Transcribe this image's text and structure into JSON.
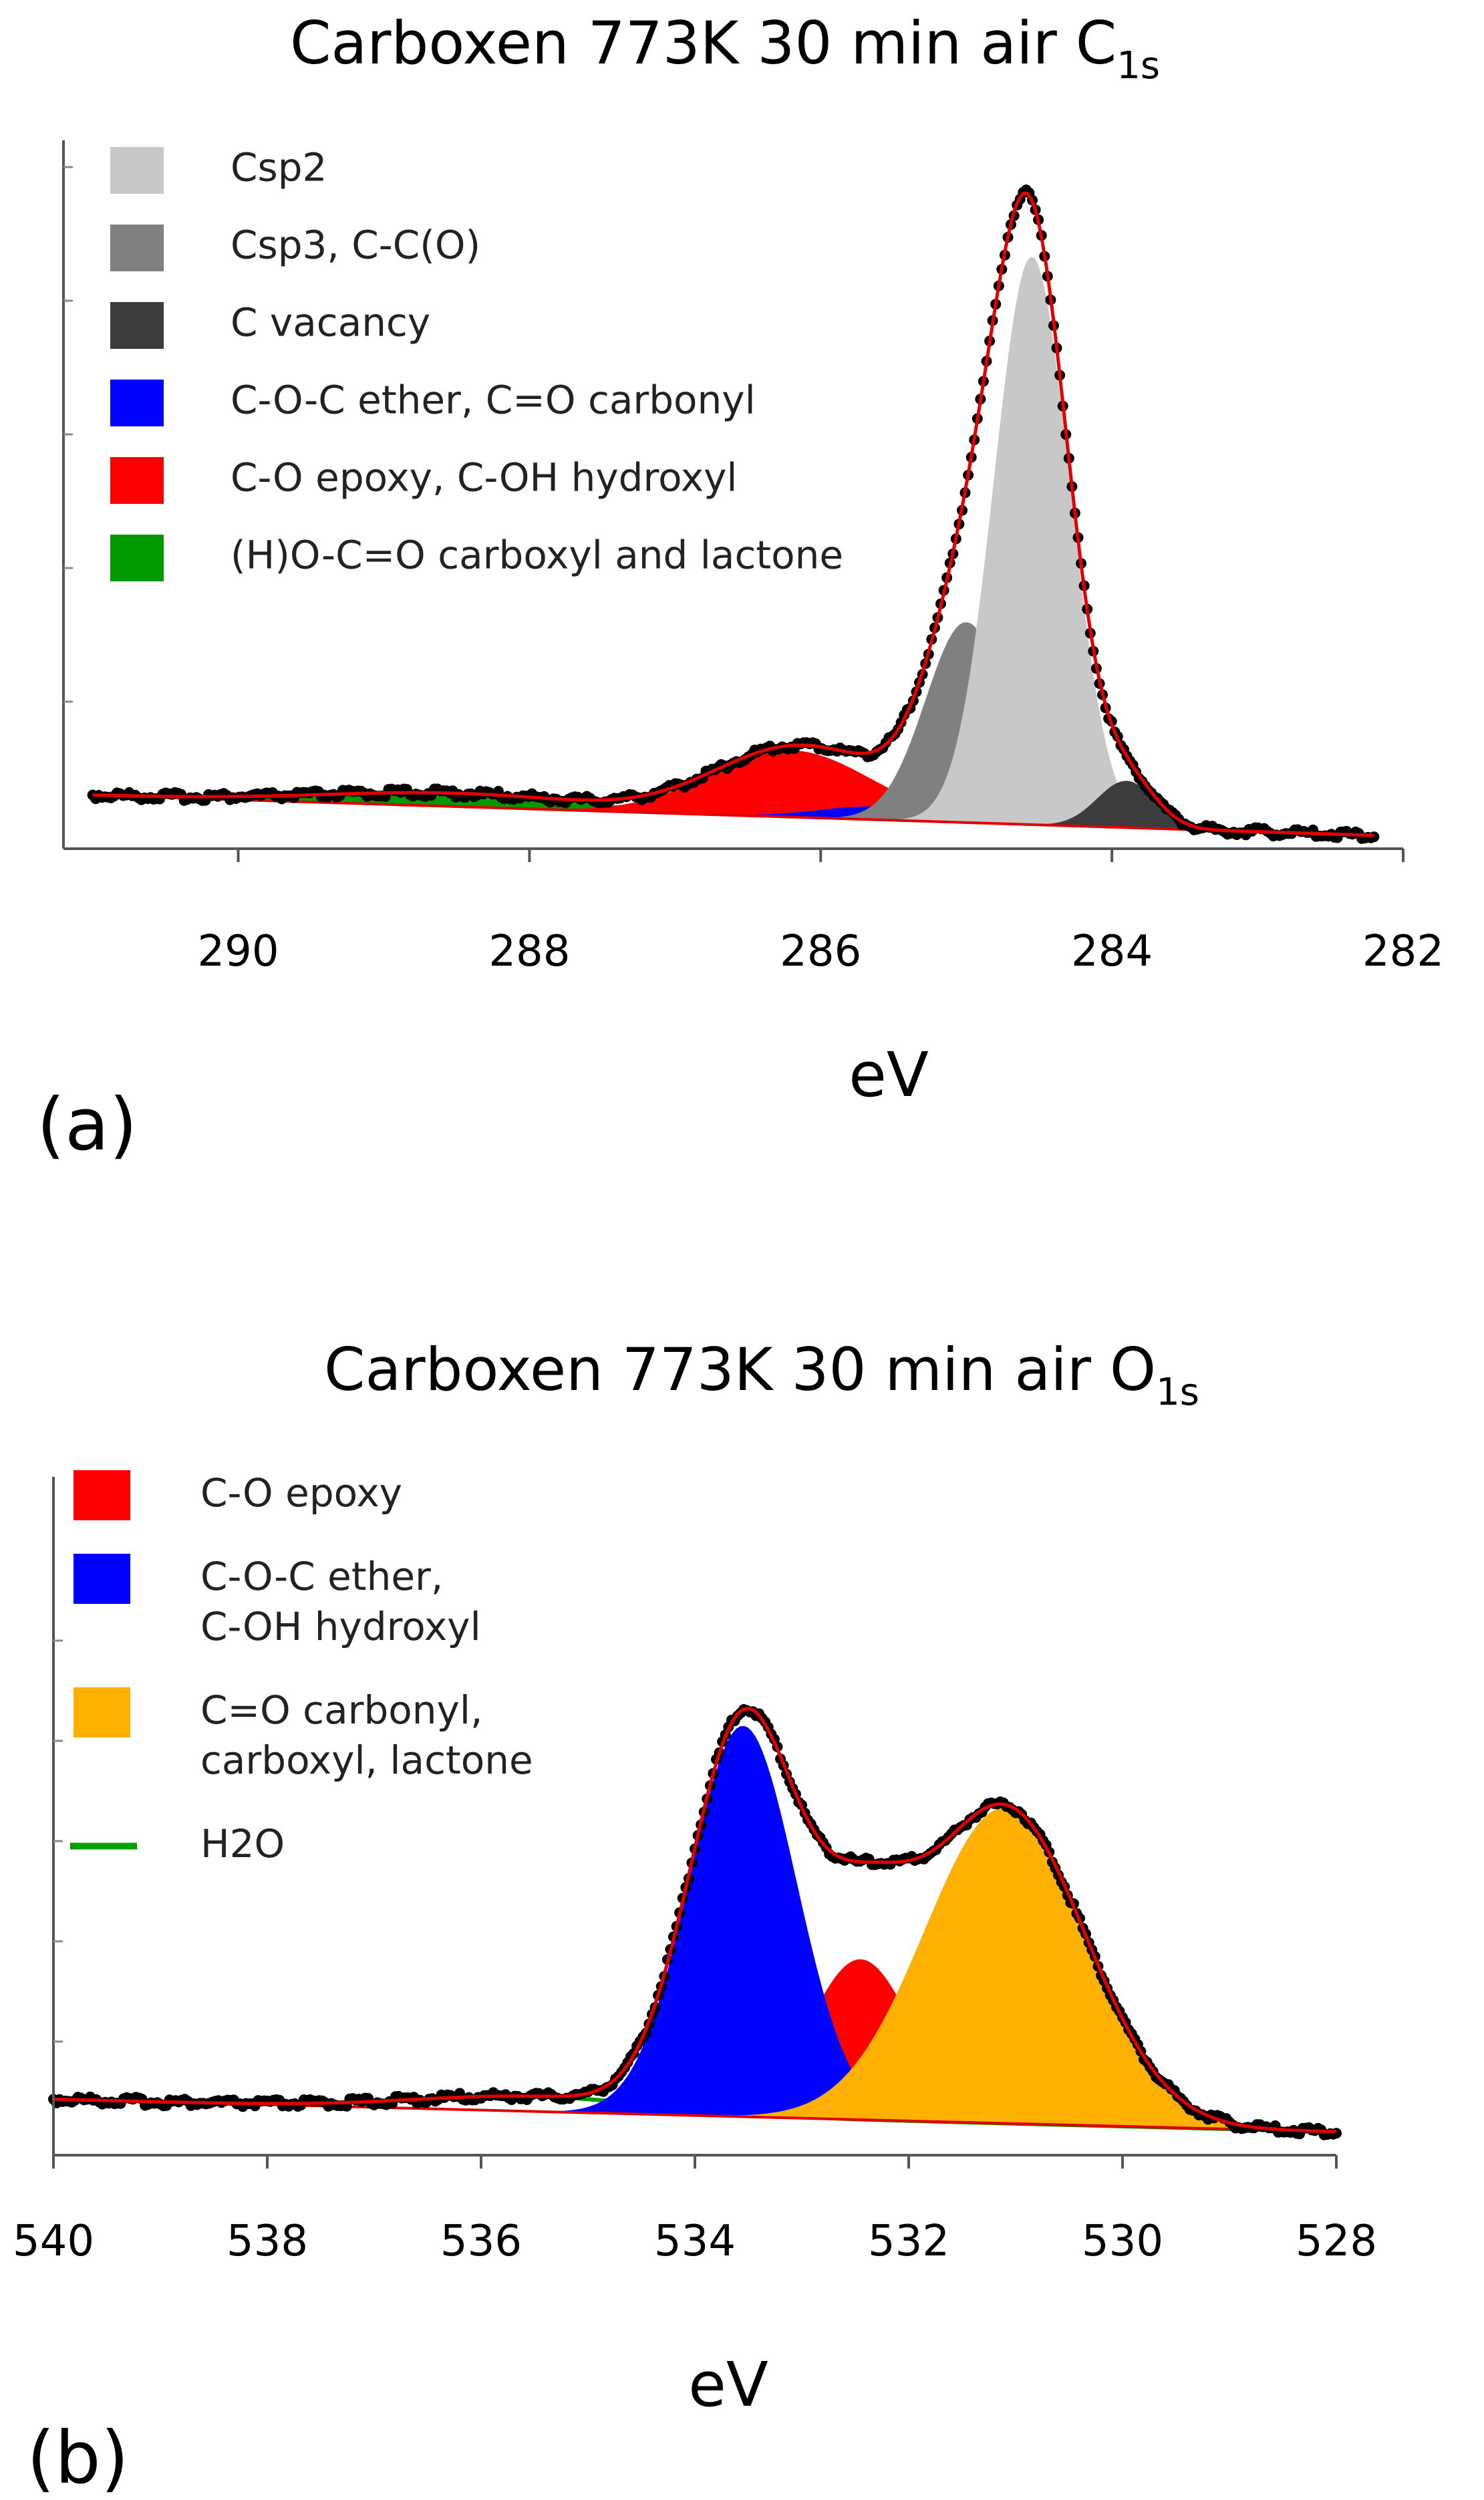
{
  "chart_data": [
    {
      "id": "a",
      "type": "area",
      "title": "Carboxen 773K 30 min air C",
      "title_sub": "1s",
      "panel_label": "(a)",
      "xlabel": "eV",
      "ylabel": "",
      "xlim": [
        291.2,
        282.0
      ],
      "x_reversed": true,
      "ylim": [
        0,
        1.07
      ],
      "xticks": [
        290,
        288,
        286,
        284,
        282
      ],
      "yticks": [
        0.2,
        0.4,
        0.6,
        0.8,
        1.0
      ],
      "background": {
        "start": 0.06,
        "end": 0.0,
        "from": 291.0,
        "to": 282.2
      },
      "legend": [
        {
          "label": "Csp2",
          "color": "#c8c8c8"
        },
        {
          "label": "Csp3, C-C(O)",
          "color": "#808080"
        },
        {
          "label": "C vacancy",
          "color": "#3c3c3c"
        },
        {
          "label": "C-O-C ether, C=O carbonyl",
          "color": "#0000ff"
        },
        {
          "label": "C-O epoxy, C-OH hydroxyl",
          "color": "#ff0000"
        },
        {
          "label": "(H)O-C=O carboxyl and lactone",
          "color": "#009900"
        }
      ],
      "components": [
        {
          "name": "(H)O-C=O carboxyl and lactone",
          "color": "#009900",
          "center": 288.5,
          "amplitude": 0.02,
          "width": 0.9
        },
        {
          "name": "C-O epoxy, C-OH hydroxyl",
          "color": "#ff0000",
          "center": 286.2,
          "amplitude": 0.1,
          "width": 0.55
        },
        {
          "name": "C-O-C ether, C=O carbonyl",
          "color": "#0000ff",
          "center": 285.6,
          "amplitude": 0.02,
          "width": 0.4
        },
        {
          "name": "Csp3, C-C(O)",
          "color": "#808080",
          "center": 285.0,
          "amplitude": 0.3,
          "width": 0.28
        },
        {
          "name": "Csp2",
          "color": "#c8c8c8",
          "center": 284.55,
          "amplitude": 0.85,
          "width": 0.26
        },
        {
          "name": "C vacancy",
          "color": "#3c3c3c",
          "center": 283.9,
          "amplitude": 0.07,
          "width": 0.2
        }
      ],
      "envelope_color": "#e00000",
      "data_color": "#000000"
    },
    {
      "id": "b",
      "type": "area",
      "title": "Carboxen 773K 30 min air O",
      "title_sub": "1s",
      "panel_label": "(b)",
      "xlabel": "eV",
      "ylabel": "",
      "xlim": [
        540.0,
        528.0
      ],
      "x_reversed": true,
      "ylim": [
        0,
        1.05
      ],
      "xticks": [
        540,
        538,
        536,
        534,
        532,
        530,
        528
      ],
      "yticks": [
        0.2,
        0.4,
        0.6,
        0.8,
        1.0
      ],
      "background": {
        "start": 0.085,
        "end": 0.02,
        "from": 540.0,
        "to": 528.0
      },
      "legend": [
        {
          "label": "C-O epoxy",
          "color": "#ff0000",
          "style": "box"
        },
        {
          "label": "C-O-C ether,",
          "label2": "C-OH hydroxyl",
          "color": "#0000ff",
          "style": "box"
        },
        {
          "label": "C=O carbonyl,",
          "label2": "carboxyl, lactone",
          "color": "#ffb000",
          "style": "box"
        },
        {
          "label": "H2O",
          "color": "#00a000",
          "style": "line"
        }
      ],
      "components": [
        {
          "name": "H2O",
          "color": "#00a000",
          "center": 535.5,
          "amplitude": 0.03,
          "width": 1.1,
          "style": "line"
        },
        {
          "name": "C-O epoxy",
          "color": "#ff0000",
          "center": 532.45,
          "amplitude": 0.32,
          "width": 0.48
        },
        {
          "name": "C-O-C ether, C-OH hydroxyl",
          "color": "#0000ff",
          "center": 533.55,
          "amplitude": 0.78,
          "width": 0.5
        },
        {
          "name": "C=O carbonyl, carboxyl, lactone",
          "color": "#ffb000",
          "center": 531.1,
          "amplitude": 0.63,
          "width": 0.75
        }
      ],
      "envelope_color": "#e00000",
      "data_color": "#000000"
    }
  ]
}
